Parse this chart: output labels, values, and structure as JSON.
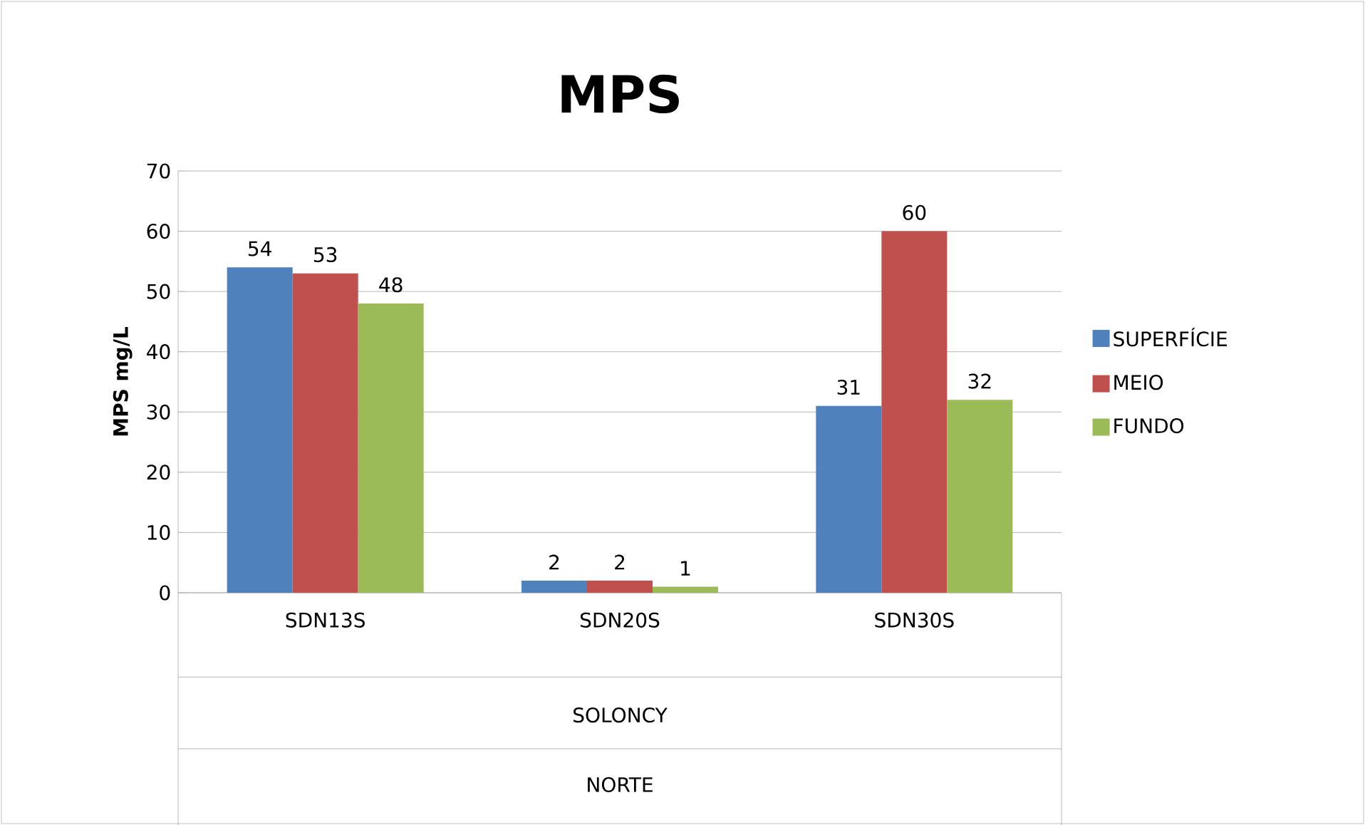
{
  "chart_data": {
    "type": "bar",
    "title": "MPS",
    "ylabel": "MPS mg/L",
    "categories": [
      "SDN13S",
      "SDN20S",
      "SDN30S"
    ],
    "series": [
      {
        "name": "SUPERFÍCIE",
        "color": "#4f81bd",
        "values": [
          54,
          2,
          31
        ]
      },
      {
        "name": "MEIO",
        "color": "#c0504d",
        "values": [
          53,
          2,
          60
        ]
      },
      {
        "name": "FUNDO",
        "color": "#9bbb59",
        "values": [
          48,
          1,
          32
        ]
      }
    ],
    "annotations": [
      "SOLONCY",
      "NORTE"
    ],
    "ylim": [
      0,
      70
    ],
    "yticks": [
      0,
      10,
      20,
      30,
      40,
      50,
      60,
      70
    ],
    "grid": "y",
    "legend": "right",
    "data_labels": true
  }
}
